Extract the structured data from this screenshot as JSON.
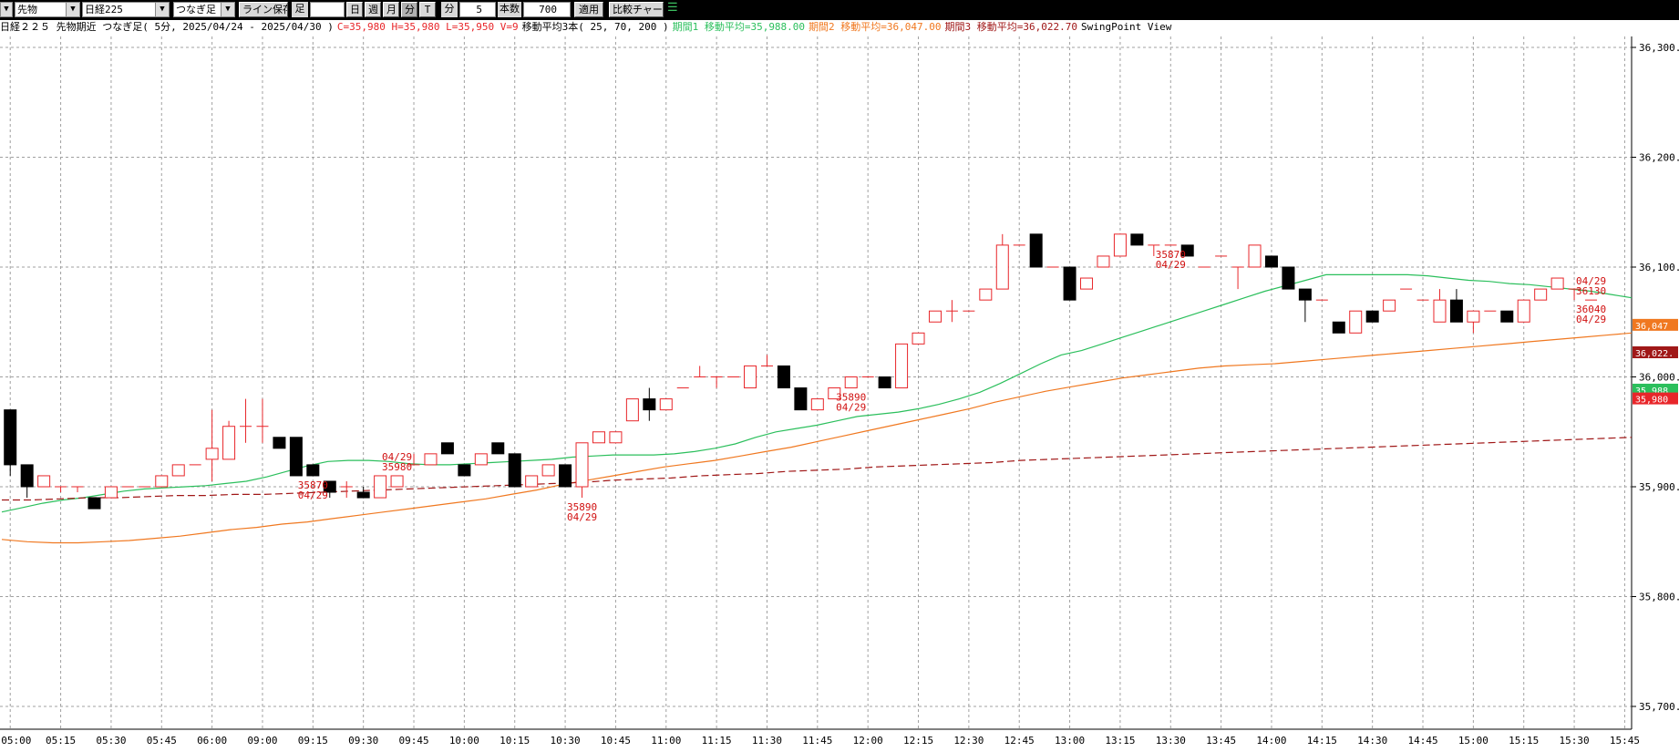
{
  "toolbar": {
    "market_select": "先物",
    "symbol_select": "日経225",
    "bar_type_select": "つなぎ足",
    "line_save_label": "ライン保存",
    "ashi_label": "足",
    "period_value": "",
    "day_label": "日",
    "week_label": "週",
    "month_label": "月",
    "minute_label": "分",
    "tick_label": "T",
    "min_unit_label": "分",
    "interval_value": "5",
    "count_label": "本数",
    "count_value": "700",
    "apply_label": "適用",
    "compare_label": "比較チャート"
  },
  "info": {
    "title": "日経２２５ 先物期近 つなぎ足( 5分, 2025/04/24 - 2025/04/30 )",
    "ohlc": "C=35,980 H=35,980 L=35,950 V=9",
    "ma_header": "移動平均3本( 25, 70, 200 )",
    "ma1": "期間1 移動平均=35,988.00",
    "ma2": "期間2 移動平均=36,047.00",
    "ma3": "期間3 移動平均=36,022.70",
    "view": "SwingPoint View"
  },
  "colors": {
    "up": "#e8262a",
    "down": "#000000",
    "ma1": "#2bbf5c",
    "ma2": "#f07820",
    "ma3": "#a01818",
    "grid": "#a0a0a0",
    "label": "#d01010"
  },
  "chart_data": {
    "type": "candlestick",
    "title": "日経２２５ 先物期近 つなぎ足( 5分, 2025/04/24 - 2025/04/30 )",
    "ylim": [
      35690,
      36315
    ],
    "y_ticks": [
      "36,300.",
      "36,200.",
      "36,100.",
      "36,000.",
      "35,900.",
      "35,800.",
      "35,700."
    ],
    "y_tick_values": [
      36300,
      36200,
      36100,
      36000,
      35900,
      35800,
      35700
    ],
    "x_ticks": [
      "9 05:00",
      "05:15",
      "05:30",
      "05:45",
      "06:00",
      "09:00",
      "09:15",
      "09:30",
      "09:45",
      "10:00",
      "10:15",
      "10:30",
      "10:45",
      "11:00",
      "11:15",
      "11:30",
      "11:45",
      "12:00",
      "12:15",
      "12:30",
      "12:45",
      "13:00",
      "13:15",
      "13:30",
      "13:45",
      "14:00",
      "14:15",
      "14:30",
      "14:45",
      "15:00",
      "15:15",
      "15:30",
      "15:45"
    ],
    "candles": [
      {
        "o": 35970,
        "h": 35970,
        "l": 35910,
        "c": 35920
      },
      {
        "o": 35920,
        "h": 35920,
        "l": 35890,
        "c": 35900
      },
      {
        "o": 35900,
        "h": 35910,
        "l": 35900,
        "c": 35910
      },
      {
        "o": 35900,
        "h": 35900,
        "l": 35895,
        "c": 35900
      },
      {
        "o": 35900,
        "h": 35900,
        "l": 35895,
        "c": 35900
      },
      {
        "o": 35890,
        "h": 35890,
        "l": 35880,
        "c": 35880
      },
      {
        "o": 35890,
        "h": 35900,
        "l": 35890,
        "c": 35900
      },
      {
        "o": 35900,
        "h": 35900,
        "l": 35900,
        "c": 35900
      },
      {
        "o": 35900,
        "h": 35900,
        "l": 35900,
        "c": 35900
      },
      {
        "o": 35900,
        "h": 35910,
        "l": 35900,
        "c": 35910
      },
      {
        "o": 35910,
        "h": 35920,
        "l": 35910,
        "c": 35920
      },
      {
        "o": 35920,
        "h": 35920,
        "l": 35920,
        "c": 35920
      },
      {
        "o": 35925,
        "h": 35970,
        "l": 35905,
        "c": 35935
      },
      {
        "o": 35925,
        "h": 35960,
        "l": 35925,
        "c": 35955
      },
      {
        "o": 35955,
        "h": 35980,
        "l": 35940,
        "c": 35955
      },
      {
        "o": 35955,
        "h": 35980,
        "l": 35940,
        "c": 35955
      },
      {
        "o": 35945,
        "h": 35945,
        "l": 35935,
        "c": 35935
      },
      {
        "o": 35945,
        "h": 35945,
        "l": 35910,
        "c": 35910
      },
      {
        "o": 35920,
        "h": 35920,
        "l": 35910,
        "c": 35910
      },
      {
        "o": 35905,
        "h": 35905,
        "l": 35890,
        "c": 35895
      },
      {
        "o": 35900,
        "h": 35905,
        "l": 35890,
        "c": 35900
      },
      {
        "o": 35895,
        "h": 35900,
        "l": 35890,
        "c": 35890
      },
      {
        "o": 35890,
        "h": 35910,
        "l": 35890,
        "c": 35910
      },
      {
        "o": 35900,
        "h": 35910,
        "l": 35900,
        "c": 35910
      },
      {
        "o": 35920,
        "h": 35930,
        "l": 35920,
        "c": 35920
      },
      {
        "o": 35920,
        "h": 35930,
        "l": 35920,
        "c": 35930
      },
      {
        "o": 35940,
        "h": 35940,
        "l": 35930,
        "c": 35930
      },
      {
        "o": 35920,
        "h": 35920,
        "l": 35910,
        "c": 35910
      },
      {
        "o": 35920,
        "h": 35930,
        "l": 35920,
        "c": 35930
      },
      {
        "o": 35940,
        "h": 35940,
        "l": 35930,
        "c": 35930
      },
      {
        "o": 35930,
        "h": 35930,
        "l": 35900,
        "c": 35900
      },
      {
        "o": 35900,
        "h": 35910,
        "l": 35900,
        "c": 35910
      },
      {
        "o": 35910,
        "h": 35920,
        "l": 35910,
        "c": 35920
      },
      {
        "o": 35920,
        "h": 35920,
        "l": 35900,
        "c": 35900
      },
      {
        "o": 35900,
        "h": 35940,
        "l": 35890,
        "c": 35940
      },
      {
        "o": 35940,
        "h": 35950,
        "l": 35940,
        "c": 35950
      },
      {
        "o": 35940,
        "h": 35950,
        "l": 35940,
        "c": 35950
      },
      {
        "o": 35960,
        "h": 35980,
        "l": 35960,
        "c": 35980
      },
      {
        "o": 35980,
        "h": 35990,
        "l": 35960,
        "c": 35970
      },
      {
        "o": 35970,
        "h": 35980,
        "l": 35970,
        "c": 35980
      },
      {
        "o": 35990,
        "h": 35990,
        "l": 35990,
        "c": 35990
      },
      {
        "o": 36000,
        "h": 36010,
        "l": 36000,
        "c": 36000
      },
      {
        "o": 36000,
        "h": 36000,
        "l": 35990,
        "c": 36000
      },
      {
        "o": 36000,
        "h": 36000,
        "l": 36000,
        "c": 36000
      },
      {
        "o": 35990,
        "h": 36010,
        "l": 35990,
        "c": 36010
      },
      {
        "o": 36010,
        "h": 36020,
        "l": 36010,
        "c": 36010
      },
      {
        "o": 36010,
        "h": 36010,
        "l": 35990,
        "c": 35990
      },
      {
        "o": 35990,
        "h": 35990,
        "l": 35970,
        "c": 35970
      },
      {
        "o": 35970,
        "h": 35980,
        "l": 35970,
        "c": 35980
      },
      {
        "o": 35980,
        "h": 35990,
        "l": 35980,
        "c": 35990
      },
      {
        "o": 35990,
        "h": 36000,
        "l": 35990,
        "c": 36000
      },
      {
        "o": 36000,
        "h": 36000,
        "l": 36000,
        "c": 36000
      },
      {
        "o": 36000,
        "h": 36000,
        "l": 35990,
        "c": 35990
      },
      {
        "o": 35990,
        "h": 36030,
        "l": 35990,
        "c": 36030
      },
      {
        "o": 36030,
        "h": 36040,
        "l": 36030,
        "c": 36040
      },
      {
        "o": 36050,
        "h": 36060,
        "l": 36050,
        "c": 36060
      },
      {
        "o": 36060,
        "h": 36070,
        "l": 36050,
        "c": 36060
      },
      {
        "o": 36060,
        "h": 36060,
        "l": 36060,
        "c": 36060
      },
      {
        "o": 36070,
        "h": 36080,
        "l": 36070,
        "c": 36080
      },
      {
        "o": 36080,
        "h": 36130,
        "l": 36080,
        "c": 36120
      },
      {
        "o": 36120,
        "h": 36120,
        "l": 36120,
        "c": 36120
      },
      {
        "o": 36130,
        "h": 36130,
        "l": 36100,
        "c": 36100
      },
      {
        "o": 36100,
        "h": 36100,
        "l": 36100,
        "c": 36100
      },
      {
        "o": 36100,
        "h": 36100,
        "l": 36070,
        "c": 36070
      },
      {
        "o": 36080,
        "h": 36090,
        "l": 36080,
        "c": 36090
      },
      {
        "o": 36100,
        "h": 36110,
        "l": 36100,
        "c": 36110
      },
      {
        "o": 36110,
        "h": 36130,
        "l": 36110,
        "c": 36130
      },
      {
        "o": 36130,
        "h": 36130,
        "l": 36120,
        "c": 36120
      },
      {
        "o": 36120,
        "h": 36120,
        "l": 36110,
        "c": 36120
      },
      {
        "o": 36120,
        "h": 36120,
        "l": 36120,
        "c": 36120
      },
      {
        "o": 36120,
        "h": 36120,
        "l": 36110,
        "c": 36110
      },
      {
        "o": 36100,
        "h": 36100,
        "l": 36100,
        "c": 36100
      },
      {
        "o": 36110,
        "h": 36110,
        "l": 36110,
        "c": 36110
      },
      {
        "o": 36100,
        "h": 36100,
        "l": 36080,
        "c": 36100
      },
      {
        "o": 36100,
        "h": 36120,
        "l": 36100,
        "c": 36120
      },
      {
        "o": 36110,
        "h": 36110,
        "l": 36100,
        "c": 36100
      },
      {
        "o": 36100,
        "h": 36100,
        "l": 36080,
        "c": 36080
      },
      {
        "o": 36080,
        "h": 36080,
        "l": 36050,
        "c": 36070
      },
      {
        "o": 36070,
        "h": 36070,
        "l": 36070,
        "c": 36070
      },
      {
        "o": 36050,
        "h": 36050,
        "l": 36040,
        "c": 36040
      },
      {
        "o": 36040,
        "h": 36060,
        "l": 36040,
        "c": 36060
      },
      {
        "o": 36060,
        "h": 36060,
        "l": 36050,
        "c": 36050
      },
      {
        "o": 36060,
        "h": 36070,
        "l": 36060,
        "c": 36070
      },
      {
        "o": 36080,
        "h": 36080,
        "l": 36080,
        "c": 36080
      },
      {
        "o": 36070,
        "h": 36070,
        "l": 36070,
        "c": 36070
      },
      {
        "o": 36050,
        "h": 36080,
        "l": 36050,
        "c": 36070
      },
      {
        "o": 36070,
        "h": 36080,
        "l": 36050,
        "c": 36050
      },
      {
        "o": 36050,
        "h": 36060,
        "l": 36040,
        "c": 36060
      },
      {
        "o": 36060,
        "h": 36060,
        "l": 36060,
        "c": 36060
      },
      {
        "o": 36060,
        "h": 36060,
        "l": 36050,
        "c": 36050
      },
      {
        "o": 36050,
        "h": 36070,
        "l": 36050,
        "c": 36070
      },
      {
        "o": 36070,
        "h": 36080,
        "l": 36070,
        "c": 36080
      },
      {
        "o": 36080,
        "h": 36090,
        "l": 36080,
        "c": 36090
      },
      {
        "o": 36080,
        "h": 36080,
        "l": 36070,
        "c": 36080
      },
      {
        "o": 36070,
        "h": 36070,
        "l": 36070,
        "c": 36070
      }
    ],
    "ma_series": [
      {
        "name": "期間1 移動平均",
        "color_key": "ma1",
        "dashed": false,
        "values": [
          35877,
          35881,
          35885,
          35888,
          35890,
          35893,
          35896,
          35898,
          35899,
          35900,
          35901,
          35903,
          35905,
          35909,
          35914,
          35919,
          35923,
          35924,
          35924,
          35923,
          35921,
          35920,
          35920,
          35921,
          35922,
          35923,
          35924,
          35925,
          35927,
          35928,
          35929,
          35929,
          35929,
          35930,
          35932,
          35935,
          35939,
          35945,
          35950,
          35953,
          35956,
          35960,
          35964,
          35966,
          35968,
          35971,
          35975,
          35980,
          35986,
          35994,
          36003,
          36012,
          36020,
          36024,
          36030,
          36036,
          36042,
          36048,
          36054,
          36060,
          36066,
          36072,
          36078,
          36083,
          36088,
          36093,
          36093,
          36093,
          36093,
          36093,
          36092,
          36090,
          36088,
          36087,
          36085,
          36084,
          36082,
          36080,
          36078,
          36075,
          36072
        ]
      },
      {
        "name": "期間2 移動平均",
        "color_key": "ma2",
        "dashed": false,
        "values": [
          35852,
          35850,
          35849,
          35849,
          35850,
          35851,
          35853,
          35855,
          35858,
          35861,
          35863,
          35866,
          35868,
          35871,
          35874,
          35877,
          35880,
          35883,
          35886,
          35889,
          35893,
          35897,
          35902,
          35906,
          35910,
          35914,
          35918,
          35921,
          35924,
          35928,
          35932,
          35936,
          35941,
          35946,
          35951,
          35956,
          35961,
          35966,
          35971,
          35977,
          35982,
          35987,
          35991,
          35995,
          35999,
          36002,
          36005,
          36008,
          36010,
          36011,
          36012,
          36014,
          36016,
          36018,
          36020,
          36022,
          36024,
          36026,
          36028,
          36030,
          36032,
          36034,
          36036,
          36038,
          36040
        ]
      },
      {
        "name": "期間3 移動平均",
        "color_key": "ma3",
        "dashed": true,
        "values": [
          35888,
          35888,
          35889,
          35890,
          35890,
          35891,
          35892,
          35892,
          35893,
          35893,
          35894,
          35895,
          35896,
          35897,
          35898,
          35899,
          35900,
          35901,
          35902,
          35903,
          35904,
          35906,
          35907,
          35908,
          35910,
          35911,
          35912,
          35914,
          35915,
          35916,
          35918,
          35919,
          35920,
          35921,
          35922,
          35924,
          35925,
          35926,
          35927,
          35928,
          35929,
          35930,
          35931,
          35932,
          35933,
          35934,
          35935,
          35936,
          35937,
          35938,
          35939,
          35940,
          35941,
          35942,
          35943,
          35944,
          35945
        ]
      }
    ],
    "annotations": [
      {
        "bar": 18,
        "anchor": "below",
        "line1": "35870",
        "line2": "04/29"
      },
      {
        "bar": 23,
        "anchor": "above",
        "line1": "04/29",
        "line2": "35980"
      },
      {
        "bar": 34,
        "anchor": "below",
        "line1": "35890",
        "line2": "04/29"
      },
      {
        "bar": 50,
        "anchor": "below",
        "line1": "35890",
        "line2": "04/29"
      },
      {
        "bar": 69,
        "anchor": "below",
        "line1": "35870",
        "line2": "04/29"
      },
      {
        "bar": 96,
        "anchor": "above",
        "line1": "04/29",
        "line2": "36130"
      },
      {
        "bar": 133,
        "anchor": "below",
        "line1": "36040",
        "line2": "04/29"
      }
    ],
    "price_tags": [
      {
        "label": "36,047",
        "value": 36047,
        "color_key": "ma2"
      },
      {
        "label": "36,022.",
        "value": 36022,
        "color_key": "ma3"
      },
      {
        "label": "35,988",
        "value": 35988,
        "color_key": "ma1"
      },
      {
        "label": "35,980",
        "value": 35980,
        "color_key": "up"
      }
    ]
  }
}
